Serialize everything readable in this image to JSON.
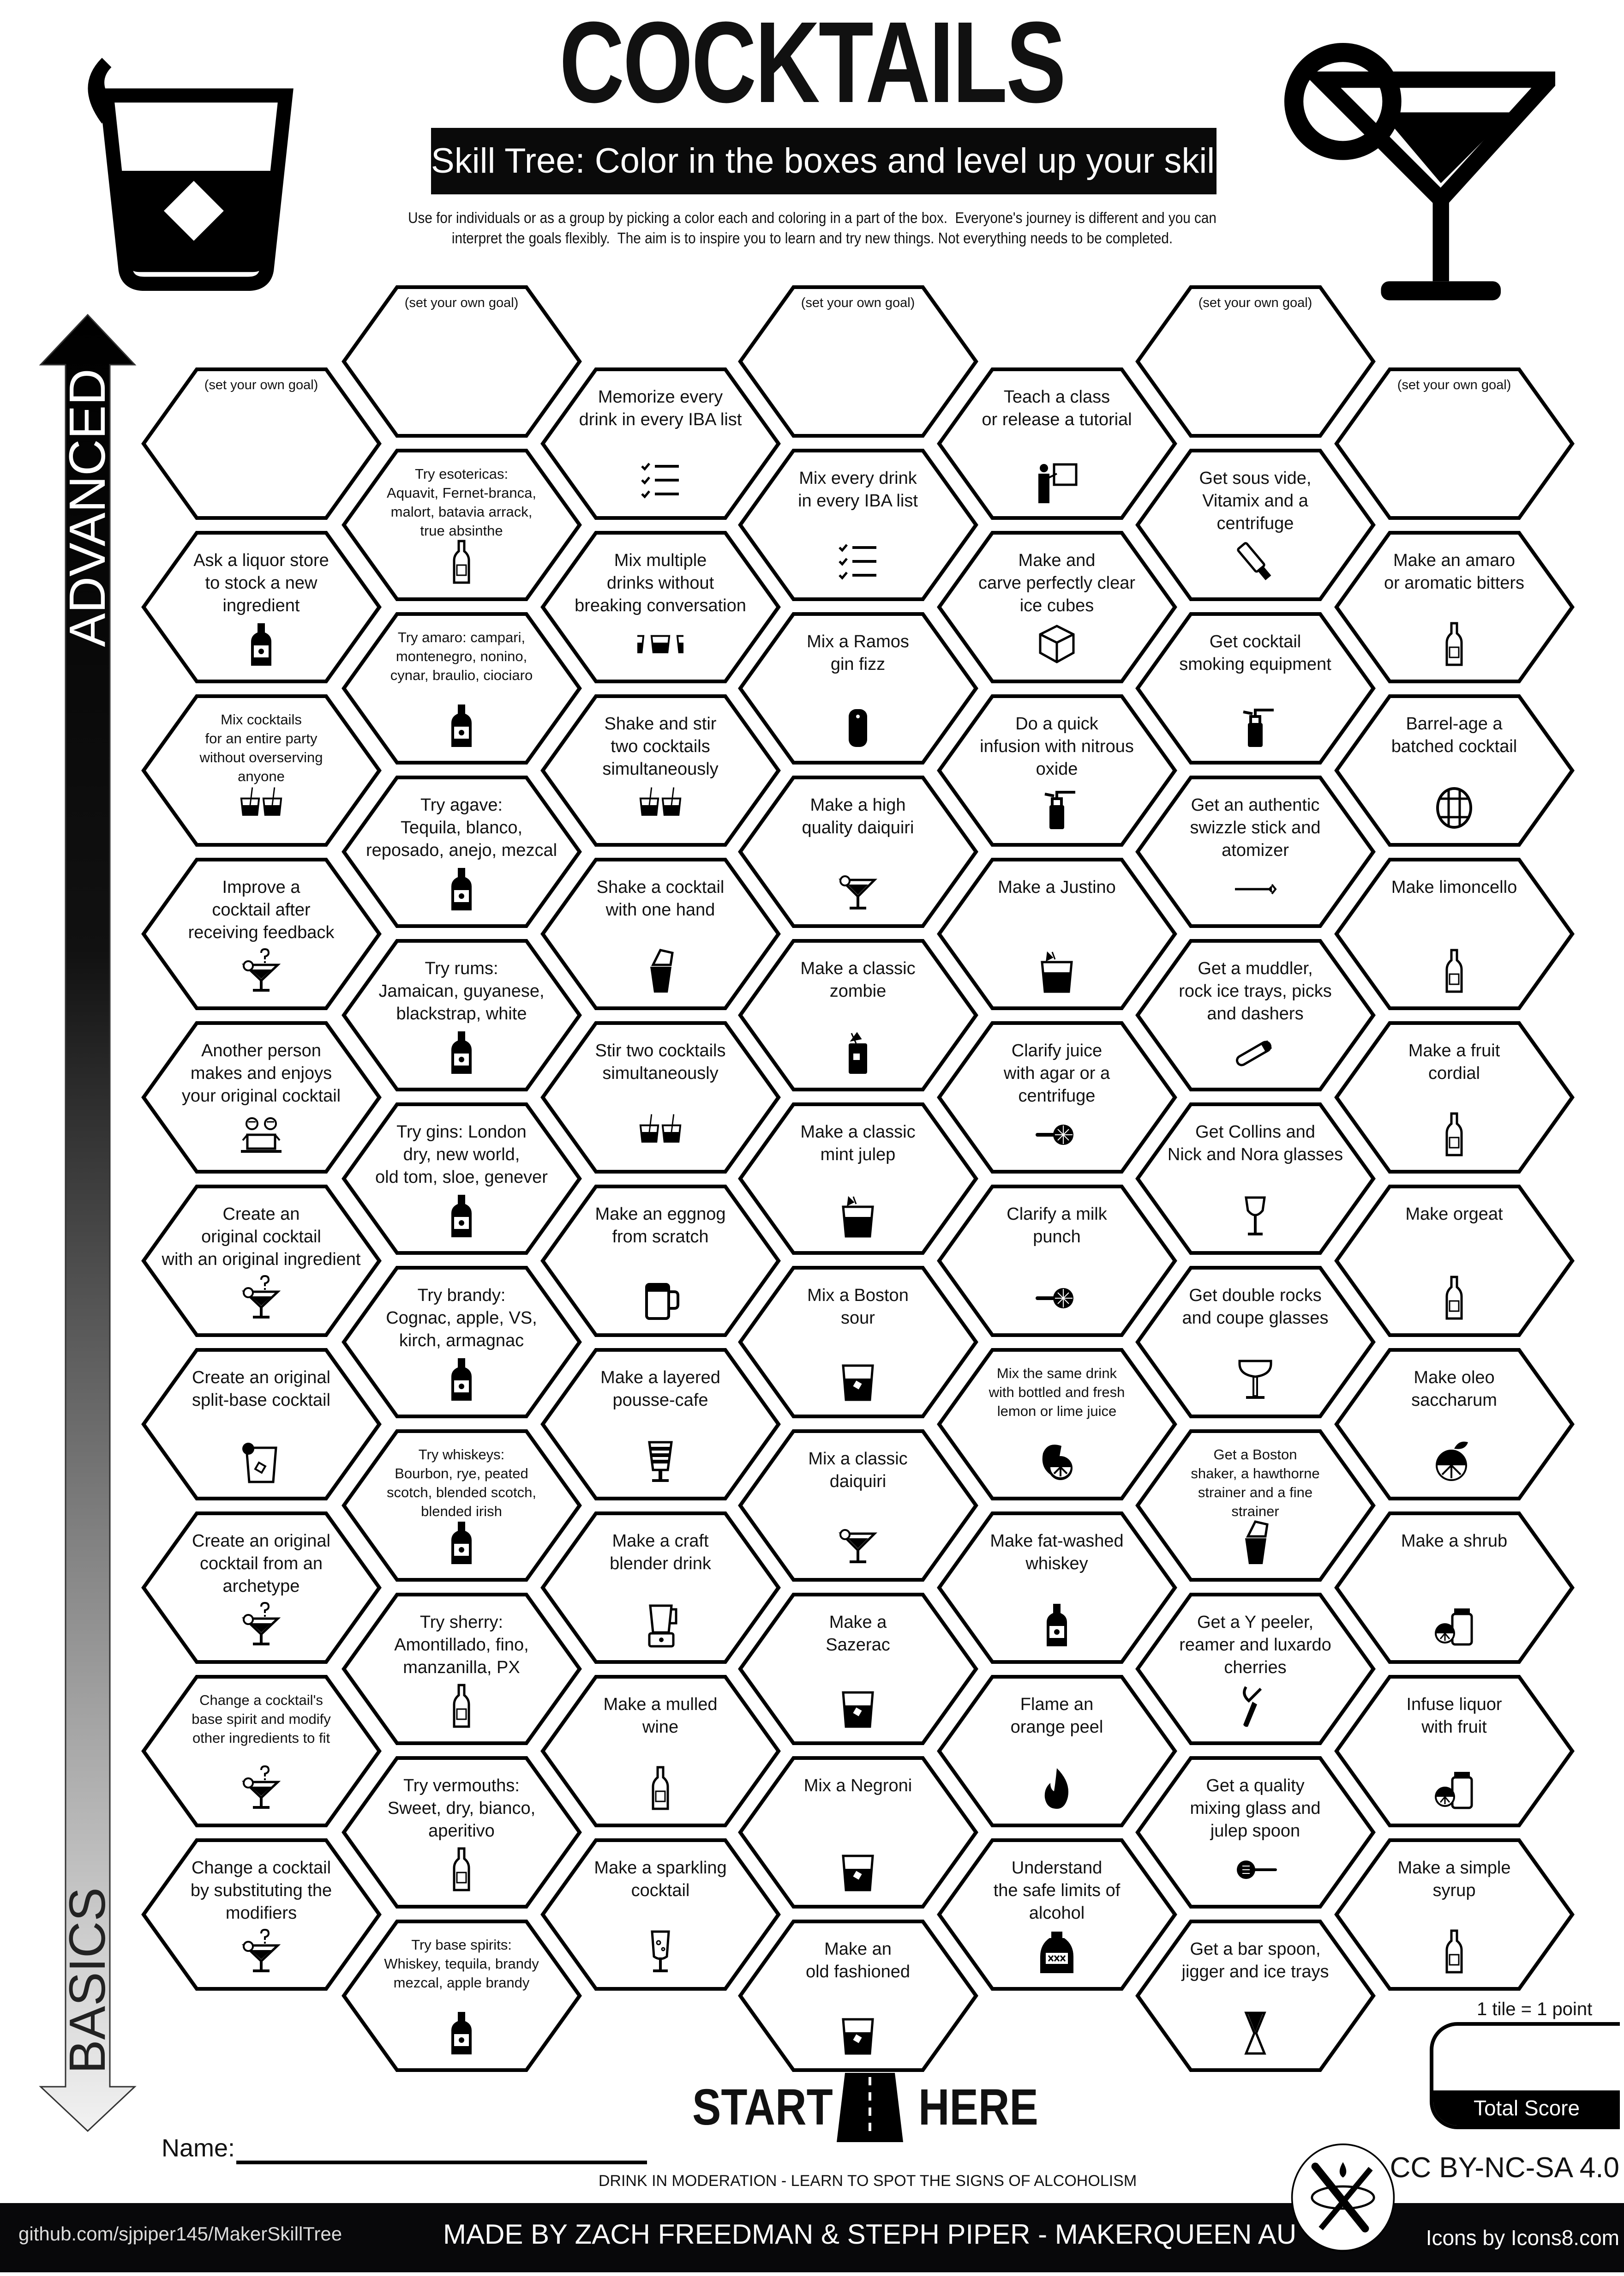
{
  "header": {
    "title": "COCKTAILS",
    "banner": "Skill Tree:  Color in the boxes and level up your skills",
    "intro": "Use for individuals or as a group by picking a color each and coloring in a part of the box.  Everyone's journey is different and you can\ninterpret the goals flexibly.  The aim is to inspire you to learn and try new things. Not everything needs to be completed."
  },
  "progress_arrow": {
    "top_label": "ADVANCED",
    "bottom_label": "BASICS"
  },
  "goal_placeholder": "(set your own goal)",
  "columns": [
    {
      "tiles": [
        {
          "text": "",
          "goal": true,
          "icon": ""
        },
        {
          "text": "Ask a liquor store\nto stock a new\ningredient",
          "icon": "liquor-bottle"
        },
        {
          "text": "Mix cocktails\nfor an entire party\nwithout overserving\nanyone",
          "icon": "two-rocks-glasses"
        },
        {
          "text": "Improve a\ncocktail after\nreceiving feedback",
          "icon": "martini-question"
        },
        {
          "text": "Another person\nmakes and enjoys\nyour original cocktail",
          "icon": "friends-laptop"
        },
        {
          "text": "Create an\noriginal cocktail\nwith an original ingredient",
          "icon": "martini-question"
        },
        {
          "text": "Create an original\nsplit-base cocktail",
          "icon": "rocks-glass-lemon"
        },
        {
          "text": "Create an original\ncocktail from an\narchetype",
          "icon": "martini-question"
        },
        {
          "text": "Change a cocktail's\nbase spirit and modify\nother ingredients to fit",
          "icon": "martini-question"
        },
        {
          "text": "Change a cocktail\nby substituting the\nmodifiers",
          "icon": "martini-question"
        }
      ]
    },
    {
      "tiles": [
        {
          "text": "",
          "goal": true,
          "icon": ""
        },
        {
          "text": "Try esotericas:\nAquavit, Fernet-branca,\nmalort, batavia arrack,\ntrue absinthe",
          "icon": "bottle-tall"
        },
        {
          "text": "Try amaro: campari,\nmontenegro, nonino,\ncynar, braulio, ciociaro",
          "icon": "liquor-bottle"
        },
        {
          "text": "Try agave:\nTequila, blanco,\nreposado, anejo, mezcal",
          "icon": "liquor-bottle"
        },
        {
          "text": "Try rums:\nJamaican, guyanese,\nblackstrap, white",
          "icon": "liquor-bottle"
        },
        {
          "text": "Try gins: London\ndry, new world,\nold tom, sloe, genever",
          "icon": "liquor-bottle"
        },
        {
          "text": "Try brandy:\nCognac, apple, VS,\nkirch, armagnac",
          "icon": "liquor-bottle"
        },
        {
          "text": "Try whiskeys:\nBourbon, rye, peated\nscotch, blended scotch,\nblended irish",
          "icon": "liquor-bottle"
        },
        {
          "text": "Try sherry:\nAmontillado, fino,\nmanzanilla, PX",
          "icon": "bottle-tall"
        },
        {
          "text": "Try vermouths:\nSweet, dry, bianco,\naperitivo",
          "icon": "bottle-tall"
        },
        {
          "text": "Try base spirits:\nWhiskey, tequila, brandy\nmezcal,  apple brandy",
          "icon": "liquor-bottle"
        }
      ]
    },
    {
      "tiles": [
        {
          "text": "Memorize every\ndrink in every IBA list",
          "icon": "checklist"
        },
        {
          "text": "Mix multiple\ndrinks without\nbreaking conversation",
          "icon": "three-rocks-glasses"
        },
        {
          "text": "Shake and stir\ntwo cocktails\nsimultaneously",
          "icon": "two-rocks-glasses"
        },
        {
          "text": "Shake a cocktail\nwith one hand",
          "icon": "shaker"
        },
        {
          "text": "Stir two cocktails\nsimultaneously",
          "icon": "two-rocks-glasses"
        },
        {
          "text": "Make an eggnog\nfrom scratch",
          "icon": "mug"
        },
        {
          "text": "Make a layered\npousse-cafe",
          "icon": "layered-glass"
        },
        {
          "text": "Make a craft\nblender drink",
          "icon": "blender"
        },
        {
          "text": "Make a mulled\nwine",
          "icon": "bottle-tall"
        },
        {
          "text": "Make a sparkling\ncocktail",
          "icon": "champagne-glass"
        }
      ]
    },
    {
      "tiles": [
        {
          "text": "",
          "goal": true,
          "icon": ""
        },
        {
          "text": "Mix every drink\nin every IBA list",
          "icon": "checklist"
        },
        {
          "text": "Mix a Ramos\ngin fizz",
          "icon": "collins-glass"
        },
        {
          "text": "Make a high\nquality daiquiri",
          "icon": "martini-lime"
        },
        {
          "text": "Make a classic\nzombie",
          "icon": "tall-glass-garnish"
        },
        {
          "text": "Make a classic\nmint julep",
          "icon": "rocks-glass-garnish"
        },
        {
          "text": "Mix a Boston\nsour",
          "icon": "rocks-glass"
        },
        {
          "text": "Mix a classic\ndaiquiri",
          "icon": "martini-lime"
        },
        {
          "text": "Make a\nSazerac",
          "icon": "rocks-glass"
        },
        {
          "text": "Mix a Negroni",
          "icon": "rocks-glass"
        },
        {
          "text": "Make an\nold fashioned",
          "icon": "rocks-glass"
        }
      ]
    },
    {
      "tiles": [
        {
          "text": "Teach a class\nor release a tutorial",
          "icon": "presenter"
        },
        {
          "text": "Make and\ncarve perfectly clear\nice cubes",
          "icon": "ice-cube"
        },
        {
          "text": "Do a quick\ninfusion with nitrous\noxide",
          "icon": "cream-siphon"
        },
        {
          "text": "Make a Justino",
          "icon": "rocks-glass-garnish"
        },
        {
          "text": "Clarify juice\nwith agar or a\ncentrifuge",
          "icon": "strainer"
        },
        {
          "text": "Clarify a milk\npunch",
          "icon": "strainer"
        },
        {
          "text": "Mix the same drink\nwith bottled and fresh\nlemon or lime juice",
          "icon": "lemon-lime"
        },
        {
          "text": "Make fat-washed\nwhiskey",
          "icon": "liquor-bottle"
        },
        {
          "text": "Flame an\norange peel",
          "icon": "flame"
        },
        {
          "text": "Understand\nthe safe limits of\nalcohol",
          "icon": "moonshine-jug"
        }
      ]
    },
    {
      "tiles": [
        {
          "text": "",
          "goal": true,
          "icon": ""
        },
        {
          "text": "Get sous vide,\nVitamix and a\ncentrifuge",
          "icon": "sous-vide"
        },
        {
          "text": "Get cocktail\nsmoking equipment",
          "icon": "cream-siphon"
        },
        {
          "text": "Get an authentic\nswizzle stick and\natomizer",
          "icon": "swizzle-stick"
        },
        {
          "text": "Get a muddler,\nrock ice trays, picks\nand dashers",
          "icon": "muddler"
        },
        {
          "text": "Get  Collins and\nNick and Nora glasses",
          "icon": "wine-glass"
        },
        {
          "text": "Get double rocks\nand coupe glasses",
          "icon": "coupe-glass"
        },
        {
          "text": "Get a Boston\nshaker, a hawthorne\nstrainer and a fine\nstrainer",
          "icon": "shaker"
        },
        {
          "text": "Get a Y peeler,\nreamer and luxardo\ncherries",
          "icon": "peeler"
        },
        {
          "text": "Get a quality\nmixing glass and\njulep spoon",
          "icon": "strainer-spoon"
        },
        {
          "text": "Get a bar spoon,\njigger and ice trays",
          "icon": "jigger"
        }
      ]
    },
    {
      "tiles": [
        {
          "text": "",
          "goal": true,
          "icon": ""
        },
        {
          "text": "Make an amaro\nor aromatic bitters",
          "icon": "bottle-tall"
        },
        {
          "text": "Barrel-age a\nbatched cocktail",
          "icon": "barrel"
        },
        {
          "text": "Make limoncello",
          "icon": "bottle-tall"
        },
        {
          "text": "Make a fruit\ncordial",
          "icon": "bottle-tall"
        },
        {
          "text": "Make orgeat",
          "icon": "bottle-tall"
        },
        {
          "text": "Make oleo\nsaccharum",
          "icon": "citrus-fruit"
        },
        {
          "text": "Make a shrub",
          "icon": "jar-citrus"
        },
        {
          "text": "Infuse liquor\nwith fruit",
          "icon": "jar-citrus"
        },
        {
          "text": "Make a simple\nsyrup",
          "icon": "bottle-tall"
        }
      ]
    }
  ],
  "bottom": {
    "start": "START",
    "here": "HERE",
    "name_label": "Name:",
    "moderation": "DRINK IN MODERATION - LEARN TO SPOT THE SIGNS OF ALCOHOLISM",
    "tile_point": "1 tile = 1 point",
    "total_score": "Total Score",
    "license": "CC BY-NC-SA 4.0"
  },
  "footer": {
    "github": "github.com/sjpiper145/MakerSkillTree",
    "made_by": "MADE BY ZACH FREEDMAN & STEPH PIPER  -  MAKERQUEEN AU",
    "icons_credit": "Icons by Icons8.com"
  },
  "colors": {
    "ink": "#0a0a0a",
    "paper": "#ffffff",
    "arrow_top": "#000000",
    "arrow_bottom": "#f2f2f2"
  }
}
